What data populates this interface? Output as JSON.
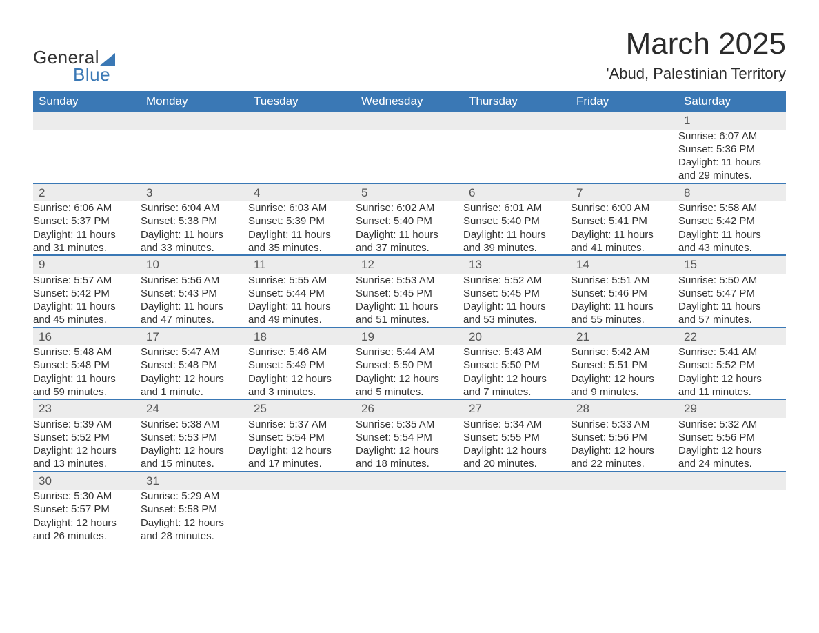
{
  "brand": {
    "name_part1": "General",
    "name_part2": "Blue",
    "accent_color": "#3a78b5"
  },
  "header": {
    "month_title": "March 2025",
    "location": "'Abud, Palestinian Territory"
  },
  "calendar": {
    "type": "table",
    "day_headers": [
      "Sunday",
      "Monday",
      "Tuesday",
      "Wednesday",
      "Thursday",
      "Friday",
      "Saturday"
    ],
    "header_bg_color": "#3a78b5",
    "header_text_color": "#ffffff",
    "daynum_bg_color": "#ececec",
    "row_divider_color": "#3a78b5",
    "text_color": "#333333",
    "font_size_header": 17,
    "font_size_daynum": 17,
    "font_size_detail": 15,
    "weeks": [
      [
        null,
        null,
        null,
        null,
        null,
        null,
        {
          "day": "1",
          "sunrise": "Sunrise: 6:07 AM",
          "sunset": "Sunset: 5:36 PM",
          "dl1": "Daylight: 11 hours",
          "dl2": "and 29 minutes."
        }
      ],
      [
        {
          "day": "2",
          "sunrise": "Sunrise: 6:06 AM",
          "sunset": "Sunset: 5:37 PM",
          "dl1": "Daylight: 11 hours",
          "dl2": "and 31 minutes."
        },
        {
          "day": "3",
          "sunrise": "Sunrise: 6:04 AM",
          "sunset": "Sunset: 5:38 PM",
          "dl1": "Daylight: 11 hours",
          "dl2": "and 33 minutes."
        },
        {
          "day": "4",
          "sunrise": "Sunrise: 6:03 AM",
          "sunset": "Sunset: 5:39 PM",
          "dl1": "Daylight: 11 hours",
          "dl2": "and 35 minutes."
        },
        {
          "day": "5",
          "sunrise": "Sunrise: 6:02 AM",
          "sunset": "Sunset: 5:40 PM",
          "dl1": "Daylight: 11 hours",
          "dl2": "and 37 minutes."
        },
        {
          "day": "6",
          "sunrise": "Sunrise: 6:01 AM",
          "sunset": "Sunset: 5:40 PM",
          "dl1": "Daylight: 11 hours",
          "dl2": "and 39 minutes."
        },
        {
          "day": "7",
          "sunrise": "Sunrise: 6:00 AM",
          "sunset": "Sunset: 5:41 PM",
          "dl1": "Daylight: 11 hours",
          "dl2": "and 41 minutes."
        },
        {
          "day": "8",
          "sunrise": "Sunrise: 5:58 AM",
          "sunset": "Sunset: 5:42 PM",
          "dl1": "Daylight: 11 hours",
          "dl2": "and 43 minutes."
        }
      ],
      [
        {
          "day": "9",
          "sunrise": "Sunrise: 5:57 AM",
          "sunset": "Sunset: 5:42 PM",
          "dl1": "Daylight: 11 hours",
          "dl2": "and 45 minutes."
        },
        {
          "day": "10",
          "sunrise": "Sunrise: 5:56 AM",
          "sunset": "Sunset: 5:43 PM",
          "dl1": "Daylight: 11 hours",
          "dl2": "and 47 minutes."
        },
        {
          "day": "11",
          "sunrise": "Sunrise: 5:55 AM",
          "sunset": "Sunset: 5:44 PM",
          "dl1": "Daylight: 11 hours",
          "dl2": "and 49 minutes."
        },
        {
          "day": "12",
          "sunrise": "Sunrise: 5:53 AM",
          "sunset": "Sunset: 5:45 PM",
          "dl1": "Daylight: 11 hours",
          "dl2": "and 51 minutes."
        },
        {
          "day": "13",
          "sunrise": "Sunrise: 5:52 AM",
          "sunset": "Sunset: 5:45 PM",
          "dl1": "Daylight: 11 hours",
          "dl2": "and 53 minutes."
        },
        {
          "day": "14",
          "sunrise": "Sunrise: 5:51 AM",
          "sunset": "Sunset: 5:46 PM",
          "dl1": "Daylight: 11 hours",
          "dl2": "and 55 minutes."
        },
        {
          "day": "15",
          "sunrise": "Sunrise: 5:50 AM",
          "sunset": "Sunset: 5:47 PM",
          "dl1": "Daylight: 11 hours",
          "dl2": "and 57 minutes."
        }
      ],
      [
        {
          "day": "16",
          "sunrise": "Sunrise: 5:48 AM",
          "sunset": "Sunset: 5:48 PM",
          "dl1": "Daylight: 11 hours",
          "dl2": "and 59 minutes."
        },
        {
          "day": "17",
          "sunrise": "Sunrise: 5:47 AM",
          "sunset": "Sunset: 5:48 PM",
          "dl1": "Daylight: 12 hours",
          "dl2": "and 1 minute."
        },
        {
          "day": "18",
          "sunrise": "Sunrise: 5:46 AM",
          "sunset": "Sunset: 5:49 PM",
          "dl1": "Daylight: 12 hours",
          "dl2": "and 3 minutes."
        },
        {
          "day": "19",
          "sunrise": "Sunrise: 5:44 AM",
          "sunset": "Sunset: 5:50 PM",
          "dl1": "Daylight: 12 hours",
          "dl2": "and 5 minutes."
        },
        {
          "day": "20",
          "sunrise": "Sunrise: 5:43 AM",
          "sunset": "Sunset: 5:50 PM",
          "dl1": "Daylight: 12 hours",
          "dl2": "and 7 minutes."
        },
        {
          "day": "21",
          "sunrise": "Sunrise: 5:42 AM",
          "sunset": "Sunset: 5:51 PM",
          "dl1": "Daylight: 12 hours",
          "dl2": "and 9 minutes."
        },
        {
          "day": "22",
          "sunrise": "Sunrise: 5:41 AM",
          "sunset": "Sunset: 5:52 PM",
          "dl1": "Daylight: 12 hours",
          "dl2": "and 11 minutes."
        }
      ],
      [
        {
          "day": "23",
          "sunrise": "Sunrise: 5:39 AM",
          "sunset": "Sunset: 5:52 PM",
          "dl1": "Daylight: 12 hours",
          "dl2": "and 13 minutes."
        },
        {
          "day": "24",
          "sunrise": "Sunrise: 5:38 AM",
          "sunset": "Sunset: 5:53 PM",
          "dl1": "Daylight: 12 hours",
          "dl2": "and 15 minutes."
        },
        {
          "day": "25",
          "sunrise": "Sunrise: 5:37 AM",
          "sunset": "Sunset: 5:54 PM",
          "dl1": "Daylight: 12 hours",
          "dl2": "and 17 minutes."
        },
        {
          "day": "26",
          "sunrise": "Sunrise: 5:35 AM",
          "sunset": "Sunset: 5:54 PM",
          "dl1": "Daylight: 12 hours",
          "dl2": "and 18 minutes."
        },
        {
          "day": "27",
          "sunrise": "Sunrise: 5:34 AM",
          "sunset": "Sunset: 5:55 PM",
          "dl1": "Daylight: 12 hours",
          "dl2": "and 20 minutes."
        },
        {
          "day": "28",
          "sunrise": "Sunrise: 5:33 AM",
          "sunset": "Sunset: 5:56 PM",
          "dl1": "Daylight: 12 hours",
          "dl2": "and 22 minutes."
        },
        {
          "day": "29",
          "sunrise": "Sunrise: 5:32 AM",
          "sunset": "Sunset: 5:56 PM",
          "dl1": "Daylight: 12 hours",
          "dl2": "and 24 minutes."
        }
      ],
      [
        {
          "day": "30",
          "sunrise": "Sunrise: 5:30 AM",
          "sunset": "Sunset: 5:57 PM",
          "dl1": "Daylight: 12 hours",
          "dl2": "and 26 minutes."
        },
        {
          "day": "31",
          "sunrise": "Sunrise: 5:29 AM",
          "sunset": "Sunset: 5:58 PM",
          "dl1": "Daylight: 12 hours",
          "dl2": "and 28 minutes."
        },
        null,
        null,
        null,
        null,
        null
      ]
    ]
  }
}
